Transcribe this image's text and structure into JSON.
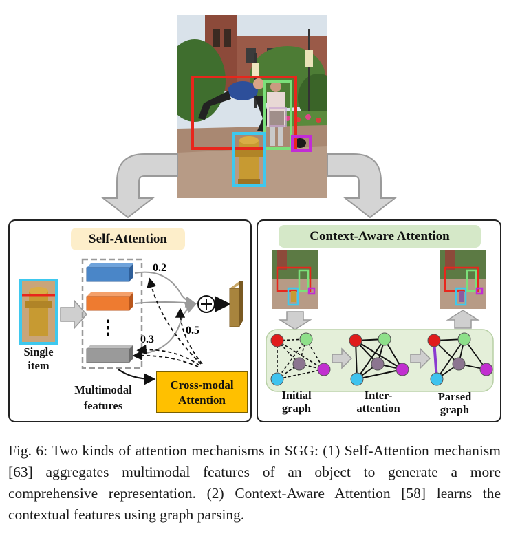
{
  "photo": {
    "description_icon": "street-scene-photo",
    "boxes": [
      {
        "color": "#e8261c"
      },
      {
        "color": "#7be07a"
      },
      {
        "color": "#3ec8ee"
      },
      {
        "color": "#c22bd6"
      }
    ]
  },
  "self_attention": {
    "title": "Self-Attention",
    "single_item_label_1": "Single",
    "single_item_label_2": "item",
    "features_label_1": "Multimodal",
    "features_label_2": "features",
    "dots": "⋮",
    "weights": [
      "0.2",
      "0.3",
      "0.5"
    ],
    "plus_symbol": "⊕",
    "cross_modal_1": "Cross-modal",
    "cross_modal_2": "Attention",
    "feature_colors": [
      "#4a86c8",
      "#ee7b30",
      "#9a9a9a"
    ]
  },
  "context_attention": {
    "title": "Context-Aware Attention",
    "graph_labels": [
      {
        "line1": "Initial",
        "line2": "graph"
      },
      {
        "line1": "Inter-",
        "line2": "attention"
      },
      {
        "line1": "Parsed",
        "line2": "graph"
      }
    ],
    "node_colors": {
      "red": "#e01b1b",
      "green": "#8ee08a",
      "purple": "#8c7590",
      "magenta": "#c12fd0",
      "blue": "#3fc3ee"
    }
  },
  "caption": "Fig. 6: Two kinds of attention mechanisms in SGG: (1) Self-Attention mechanism [63] aggregates multimodal features of an object to generate a more comprehensive representation. (2) Context-Aware Attention [58] learns the contextual features using graph parsing."
}
